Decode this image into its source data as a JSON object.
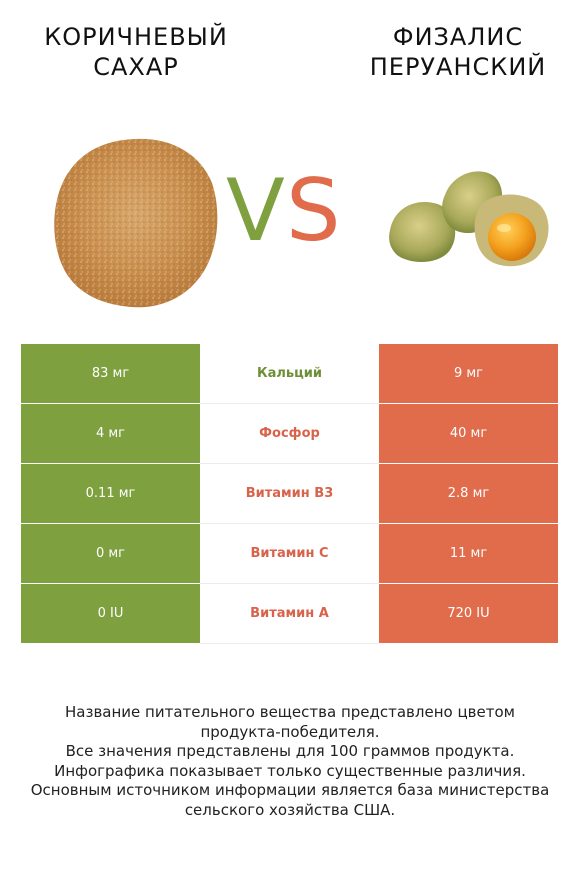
{
  "colors": {
    "green": "#7ea03f",
    "orange": "#e06c4c",
    "middle_green": "#6d8f36",
    "middle_orange": "#d8634a"
  },
  "left_food": {
    "name_line1": "КОРИЧНЕВЫЙ",
    "name_line2": "САХАР",
    "image": "brown-sugar-pile"
  },
  "right_food": {
    "name_line1": "ФИЗАЛИС",
    "name_line2": "ПЕРУАНСКИЙ",
    "image": "physalis-berries"
  },
  "vs": {
    "v": "V",
    "s": "S"
  },
  "rows": [
    {
      "left": "83 мг",
      "nutrient": "Кальций",
      "right": "9 мг",
      "winner": "left"
    },
    {
      "left": "4 мг",
      "nutrient": "Фосфор",
      "right": "40 мг",
      "winner": "right"
    },
    {
      "left": "0.11 мг",
      "nutrient": "Витамин B3",
      "right": "2.8 мг",
      "winner": "right"
    },
    {
      "left": "0 мг",
      "nutrient": "Витамин C",
      "right": "11 мг",
      "winner": "right"
    },
    {
      "left": "0 IU",
      "nutrient": "Витамин A",
      "right": "720 IU",
      "winner": "right"
    }
  ],
  "footnote": {
    "line1": "Название питательного вещества представлено цветом",
    "line2": "продукта-победителя.",
    "line3": "Все значения представлены для 100 граммов продукта.",
    "line4": "Инфографика показывает только существенные различия.",
    "line5": "Основным источником информации является база министерства",
    "line6": "сельского хозяйства США."
  }
}
